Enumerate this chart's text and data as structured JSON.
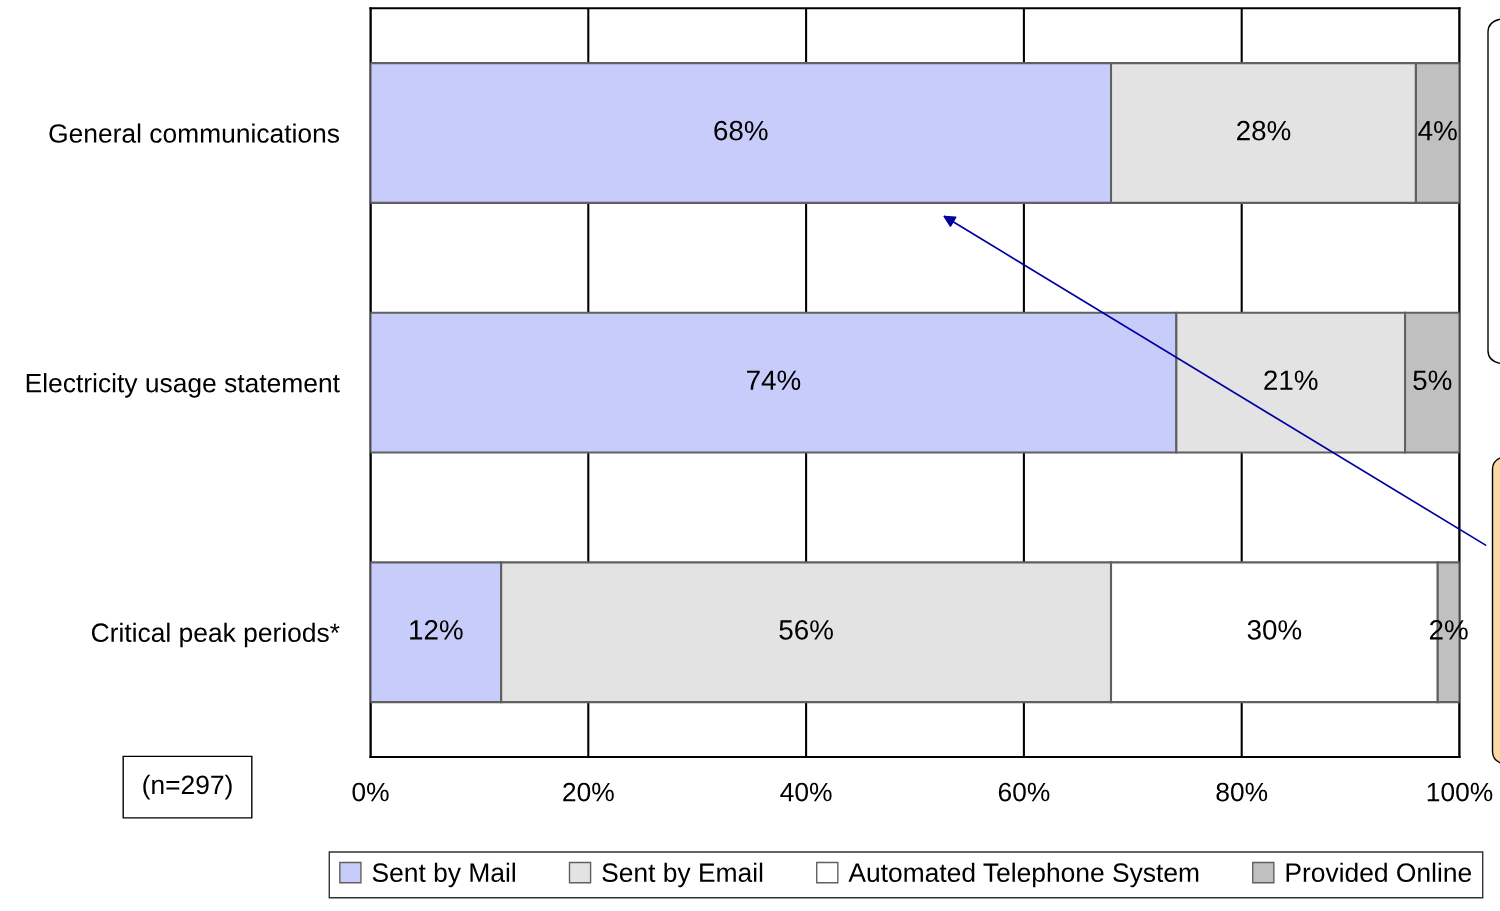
{
  "chart_data": {
    "type": "bar",
    "orientation": "horizontal",
    "stacked": true,
    "categories": [
      "General communications",
      "Electricity usage statement",
      "Critical peak periods*"
    ],
    "series": [
      {
        "name": "Sent by Mail",
        "color": "#c8ccfa",
        "values": [
          68,
          74,
          12
        ],
        "value_labels": [
          "68%",
          "74%",
          "12%"
        ]
      },
      {
        "name": "Sent by Email",
        "color": "#e3e3e3",
        "values": [
          28,
          21,
          56
        ],
        "value_labels": [
          "28%",
          "21%",
          "56%"
        ]
      },
      {
        "name": "Automated Telephone System",
        "color": "#ffffff",
        "values": [
          0,
          0,
          30
        ],
        "value_labels": [
          null,
          null,
          "30%"
        ]
      },
      {
        "name": "Provided Online",
        "color": "#c0c0c0",
        "values": [
          4,
          5,
          2
        ],
        "value_labels": [
          "4%",
          "5%",
          "2%"
        ]
      }
    ],
    "xlim": [
      0,
      100
    ],
    "xticks": [
      {
        "value": 0,
        "label": "0%"
      },
      {
        "value": 20,
        "label": "20%"
      },
      {
        "value": 40,
        "label": "40%"
      },
      {
        "value": 60,
        "label": "60%"
      },
      {
        "value": 80,
        "label": "80%"
      },
      {
        "value": 100,
        "label": "100%"
      }
    ],
    "grid": "x",
    "legend": "bottom",
    "annotations": [
      "(n=297)"
    ]
  }
}
